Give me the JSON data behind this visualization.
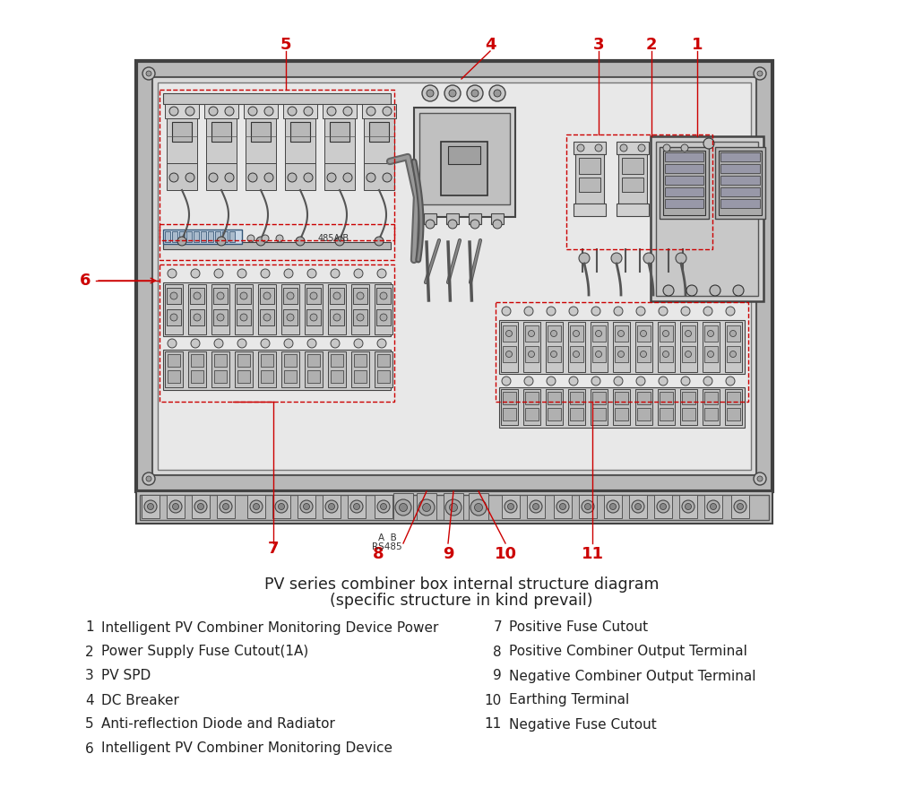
{
  "title_line1": "PV series combiner box internal structure diagram",
  "title_line2": "(specific structure in kind prevail)",
  "bg_color": "#ffffff",
  "red_color": "#cc0000",
  "legend_items_left": [
    [
      "1",
      "Intelligent PV Combiner Monitoring Device Power"
    ],
    [
      "2",
      "Power Supply Fuse Cutout(1A)"
    ],
    [
      "3",
      "PV SPD"
    ],
    [
      "4",
      "DC Breaker"
    ],
    [
      "5",
      "Anti-reflection Diode and Radiator"
    ],
    [
      "6",
      "Intelligent PV Combiner Monitoring Device"
    ]
  ],
  "legend_items_right": [
    [
      "7",
      "Positive Fuse Cutout"
    ],
    [
      "8",
      "Positive Combiner Output Terminal"
    ],
    [
      "9",
      "Negative Combiner Output Terminal"
    ],
    [
      "10",
      "Earthing Terminal"
    ],
    [
      "11",
      "Negative Fuse Cutout"
    ]
  ]
}
